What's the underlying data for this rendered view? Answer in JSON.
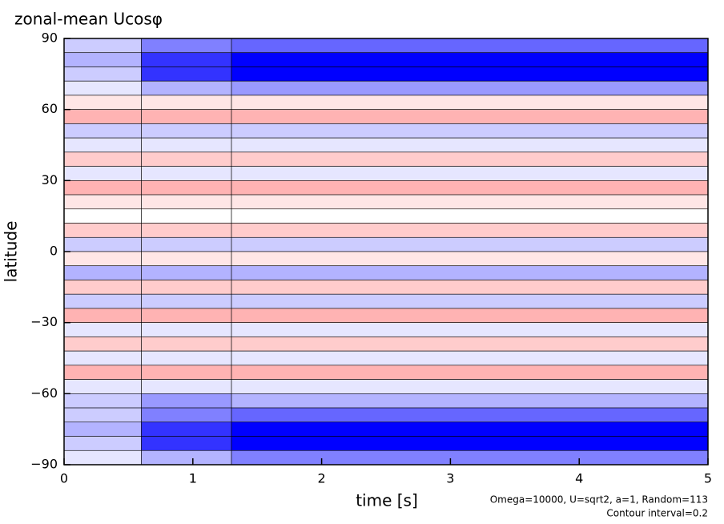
{
  "chart_data": {
    "type": "heatmap",
    "title": "zonal-mean Ucosφ",
    "xlabel": "time [s]",
    "ylabel": "latitude",
    "annotations": [
      "Omega=10000, U=sqrt2, a=1, Random=113",
      "Contour interval=0.2"
    ],
    "xlim": [
      0,
      5
    ],
    "ylim": [
      -90,
      90
    ],
    "xticks": [
      0,
      1,
      2,
      3,
      4,
      5
    ],
    "yticks": [
      {
        "value": -90,
        "label": "−90"
      },
      {
        "value": -60,
        "label": "−60"
      },
      {
        "value": -30,
        "label": "−30"
      },
      0,
      30,
      60,
      90
    ],
    "x_edges": [
      0,
      0.6,
      1.3,
      5
    ],
    "y_edges": [
      90,
      84,
      78,
      72,
      66,
      60,
      54,
      48,
      42,
      36,
      30,
      24,
      18,
      12,
      6,
      0,
      -6,
      -12,
      -18,
      -24,
      -30,
      -36,
      -42,
      -48,
      -54,
      -60,
      -66,
      -72,
      -78,
      -84,
      -90
    ],
    "values": [
      [
        -0.2,
        -0.5,
        -0.6
      ],
      [
        -0.3,
        -0.8,
        -1.0
      ],
      [
        -0.2,
        -0.8,
        -1.0
      ],
      [
        -0.1,
        -0.3,
        -0.4
      ],
      [
        0.1,
        0.1,
        0.1
      ],
      [
        0.3,
        0.3,
        0.3
      ],
      [
        -0.2,
        -0.2,
        -0.2
      ],
      [
        -0.1,
        -0.1,
        -0.1
      ],
      [
        0.2,
        0.2,
        0.2
      ],
      [
        -0.1,
        -0.1,
        -0.1
      ],
      [
        0.3,
        0.3,
        0.3
      ],
      [
        0.1,
        0.1,
        0.1
      ],
      [
        0.0,
        0.0,
        0.0
      ],
      [
        0.2,
        0.2,
        0.2
      ],
      [
        -0.2,
        -0.2,
        -0.2
      ],
      [
        0.1,
        0.1,
        0.1
      ],
      [
        -0.3,
        -0.3,
        -0.3
      ],
      [
        0.2,
        0.2,
        0.2
      ],
      [
        -0.2,
        -0.2,
        -0.2
      ],
      [
        0.3,
        0.3,
        0.3
      ],
      [
        -0.1,
        -0.1,
        -0.1
      ],
      [
        0.2,
        0.2,
        0.2
      ],
      [
        -0.1,
        -0.1,
        -0.1
      ],
      [
        0.3,
        0.3,
        0.3
      ],
      [
        -0.1,
        -0.1,
        -0.1
      ],
      [
        -0.2,
        -0.4,
        -0.3
      ],
      [
        -0.2,
        -0.5,
        -0.6
      ],
      [
        -0.3,
        -0.8,
        -1.0
      ],
      [
        -0.2,
        -0.8,
        -1.0
      ],
      [
        -0.1,
        -0.3,
        -0.5
      ]
    ],
    "color_scale": {
      "negative": "#0000ff",
      "zero": "#ffffff",
      "positive": "#ff0000",
      "limits": [
        -1,
        1
      ]
    }
  }
}
